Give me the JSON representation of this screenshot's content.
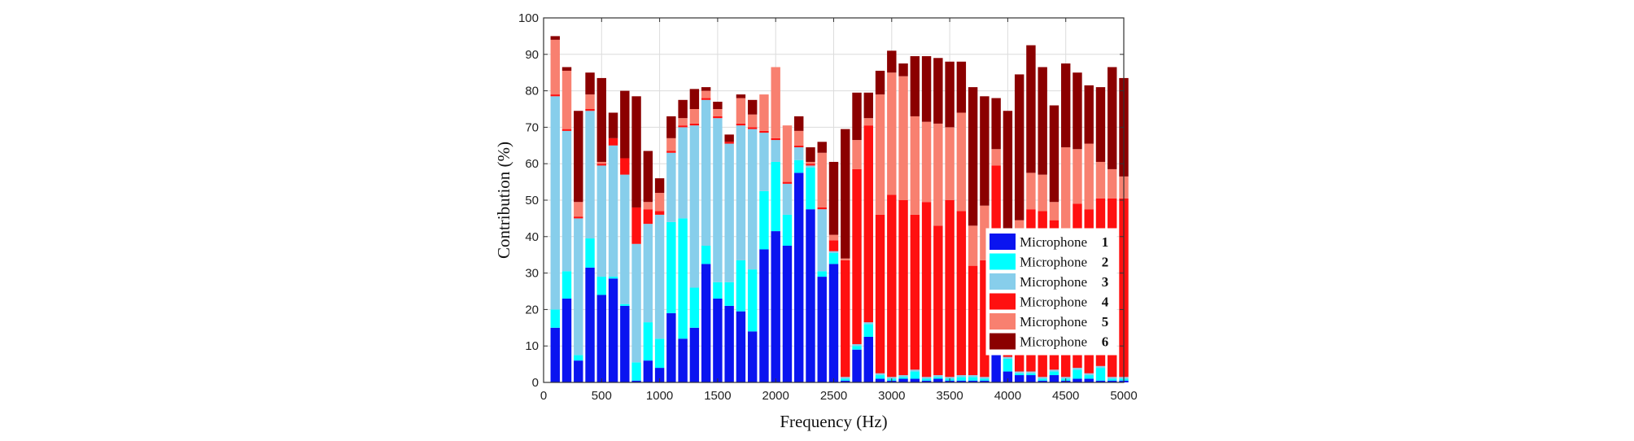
{
  "chart_data": {
    "type": "bar",
    "stacked": true,
    "title": "",
    "xlabel": "Frequency (Hz)",
    "ylabel": "Contribution (%)",
    "xlim": [
      0,
      5000
    ],
    "ylim": [
      0,
      100
    ],
    "x_ticks": [
      "0",
      "500",
      "1000",
      "1500",
      "2000",
      "2500",
      "3000",
      "3500",
      "4000",
      "4500",
      "5000"
    ],
    "y_ticks": [
      "0",
      "10",
      "20",
      "30",
      "40",
      "50",
      "60",
      "70",
      "80",
      "90",
      "100"
    ],
    "grid": true,
    "legend_position": "bottom-right",
    "x": [
      100,
      200,
      300,
      400,
      500,
      600,
      700,
      800,
      900,
      1000,
      1100,
      1200,
      1300,
      1400,
      1500,
      1600,
      1700,
      1800,
      1900,
      2000,
      2100,
      2200,
      2300,
      2400,
      2500,
      2600,
      2700,
      2800,
      2900,
      3000,
      3100,
      3200,
      3300,
      3400,
      3500,
      3600,
      3700,
      3800,
      3900,
      4000,
      4100,
      4200,
      4300,
      4400,
      4500,
      4600,
      4700,
      4800,
      4900,
      5000
    ],
    "series": [
      {
        "name": "Microphone",
        "label_number": "1",
        "color": "#0a14f0",
        "values": [
          15,
          23,
          6,
          31.5,
          24,
          28.5,
          21,
          0.5,
          6,
          4,
          19,
          12,
          15,
          32.5,
          23,
          21,
          19.5,
          14,
          36.5,
          41.5,
          37.5,
          57.5,
          47.5,
          29,
          32.5,
          0.5,
          9,
          12.5,
          1,
          0.5,
          1,
          1,
          0.5,
          1,
          0.5,
          0.5,
          0.5,
          0.5,
          8,
          3,
          2,
          2,
          0.5,
          2,
          0.5,
          1,
          1,
          0.5,
          0.5,
          0.5
        ]
      },
      {
        "name": "Microphone",
        "label_number": "2",
        "color": "#00ffff",
        "values": [
          5,
          7.5,
          1.5,
          8,
          5,
          0.5,
          0.5,
          5,
          10.5,
          8,
          25,
          33,
          11,
          5,
          4.5,
          6.5,
          14,
          17,
          16,
          19,
          8.5,
          3.5,
          11.5,
          1.5,
          3,
          0.5,
          1,
          3.5,
          1,
          0.5,
          0.5,
          2,
          0.5,
          0.5,
          0.5,
          1,
          1,
          0.5,
          0.5,
          3.5,
          0.5,
          0.5,
          0.5,
          1,
          0.5,
          2.5,
          1,
          3.5,
          0.5,
          0.5
        ]
      },
      {
        "name": "Microphone",
        "label_number": "3",
        "color": "#87ceeb",
        "values": [
          58.5,
          38.5,
          37.5,
          35,
          30.5,
          36,
          35.5,
          32.5,
          27,
          34,
          19,
          25,
          44.5,
          40,
          45,
          38,
          37,
          38.5,
          16,
          6,
          8.5,
          3.5,
          0.5,
          17,
          0.5,
          0.5,
          0.5,
          0.5,
          0.5,
          0.5,
          0.5,
          0.5,
          0.5,
          0.5,
          0.5,
          0.5,
          0.5,
          0.5,
          0.5,
          0.5,
          0.5,
          0.5,
          0.5,
          0.5,
          0.5,
          0.5,
          0.5,
          0.5,
          0.5,
          0.5
        ]
      },
      {
        "name": "Microphone",
        "label_number": "4",
        "color": "#ff1010",
        "values": [
          0.5,
          0.5,
          0.5,
          0.5,
          0.5,
          2,
          4.5,
          10,
          4,
          1,
          0.5,
          0.5,
          0.5,
          0.5,
          0.5,
          0.5,
          0.5,
          0.5,
          0.5,
          0.5,
          0.5,
          0.5,
          0.5,
          0.5,
          3,
          32,
          48,
          54,
          43.5,
          50,
          48,
          42.5,
          48,
          41,
          48.5,
          45,
          30,
          32,
          50.5,
          30.5,
          33,
          44.5,
          45.5,
          41,
          32,
          45,
          45,
          46,
          49,
          49
        ]
      },
      {
        "name": "Microphone",
        "label_number": "5",
        "color": "#f88070",
        "values": [
          15,
          16,
          4,
          4,
          0.5,
          0,
          0,
          0,
          2,
          5,
          3.5,
          2,
          4,
          2,
          2,
          0,
          7,
          3.5,
          10,
          19.5,
          15.5,
          4,
          0.5,
          15,
          1.5,
          0.5,
          8,
          2,
          33,
          33.5,
          34,
          27,
          22,
          28,
          20,
          27,
          11,
          15,
          4.5,
          0,
          8.5,
          10,
          10,
          5,
          31,
          15,
          18,
          10,
          8,
          6
        ]
      },
      {
        "name": "Microphone",
        "label_number": "6",
        "color": "#8b0000",
        "values": [
          1,
          1,
          25,
          6,
          23,
          7,
          18.5,
          30.5,
          14,
          4,
          6,
          5,
          5.5,
          1,
          2,
          2,
          1,
          4,
          0,
          0,
          0,
          4,
          4,
          3,
          20,
          35.5,
          13,
          7,
          6.5,
          6,
          3.5,
          16.5,
          18,
          18,
          18,
          14,
          38,
          30,
          14,
          37,
          40,
          35,
          29.5,
          26.5,
          23,
          21,
          16,
          20.5,
          28,
          27
        ]
      }
    ]
  }
}
